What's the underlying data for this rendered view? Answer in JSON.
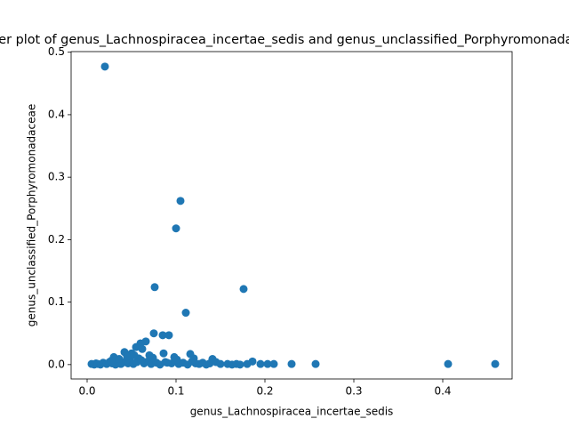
{
  "chart_data": {
    "type": "scatter",
    "title": "Scatter plot of genus_Lachnospiracea_incertae_sedis and genus_unclassified_Porphyromonadaceae",
    "x_label": "genus_Lachnospiracea_incertae_sedis",
    "y_label": "genus_unclassified_Porphyromonadaceae",
    "color": "#1f77b4",
    "x": [
      0.02,
      0.105,
      0.1,
      0.076,
      0.176,
      0.111,
      0.075,
      0.085,
      0.092,
      0.066,
      0.06,
      0.055,
      0.062,
      0.042,
      0.05,
      0.086,
      0.116,
      0.07,
      0.03,
      0.141,
      0.12,
      0.186,
      0.195,
      0.203,
      0.21,
      0.23,
      0.257,
      0.406,
      0.459,
      0.005,
      0.008,
      0.01,
      0.012,
      0.015,
      0.018,
      0.022,
      0.025,
      0.028,
      0.032,
      0.035,
      0.038,
      0.04,
      0.044,
      0.046,
      0.048,
      0.052,
      0.056,
      0.058,
      0.064,
      0.068,
      0.072,
      0.078,
      0.082,
      0.088,
      0.095,
      0.098,
      0.103,
      0.108,
      0.113,
      0.118,
      0.122,
      0.126,
      0.13,
      0.134,
      0.138,
      0.145,
      0.15,
      0.158,
      0.163,
      0.168,
      0.172,
      0.18,
      0.045,
      0.053,
      0.061,
      0.036,
      0.027,
      0.09,
      0.101,
      0.074
    ],
    "values": [
      0.477,
      0.262,
      0.218,
      0.124,
      0.121,
      0.083,
      0.05,
      0.047,
      0.047,
      0.037,
      0.034,
      0.028,
      0.025,
      0.02,
      0.018,
      0.018,
      0.017,
      0.015,
      0.012,
      0.009,
      0.01,
      0.005,
      0.001,
      0.001,
      0.001,
      0.001,
      0.001,
      0.001,
      0.001,
      0.001,
      0.0,
      0.002,
      0.001,
      0.0,
      0.003,
      0.001,
      0.004,
      0.002,
      0.0,
      0.005,
      0.001,
      0.003,
      0.006,
      0.002,
      0.008,
      0.001,
      0.004,
      0.01,
      0.002,
      0.005,
      0.001,
      0.003,
      0.0,
      0.004,
      0.002,
      0.012,
      0.001,
      0.003,
      0.0,
      0.005,
      0.002,
      0.001,
      0.003,
      0.0,
      0.002,
      0.004,
      0.001,
      0.001,
      0.0,
      0.001,
      0.0,
      0.001,
      0.013,
      0.015,
      0.007,
      0.009,
      0.006,
      0.003,
      0.008,
      0.011
    ],
    "xlim": [
      -0.018,
      0.478
    ],
    "ylim": [
      -0.023,
      0.501
    ],
    "xticks": [
      {
        "value": 0.0,
        "label": "0.0"
      },
      {
        "value": 0.1,
        "label": "0.1"
      },
      {
        "value": 0.2,
        "label": "0.2"
      },
      {
        "value": 0.3,
        "label": "0.3"
      },
      {
        "value": 0.4,
        "label": "0.4"
      }
    ],
    "yticks": [
      {
        "value": 0.0,
        "label": "0.0"
      },
      {
        "value": 0.1,
        "label": "0.1"
      },
      {
        "value": 0.2,
        "label": "0.2"
      },
      {
        "value": 0.3,
        "label": "0.3"
      },
      {
        "value": 0.4,
        "label": "0.4"
      },
      {
        "value": 0.5,
        "label": "0.5"
      }
    ]
  }
}
